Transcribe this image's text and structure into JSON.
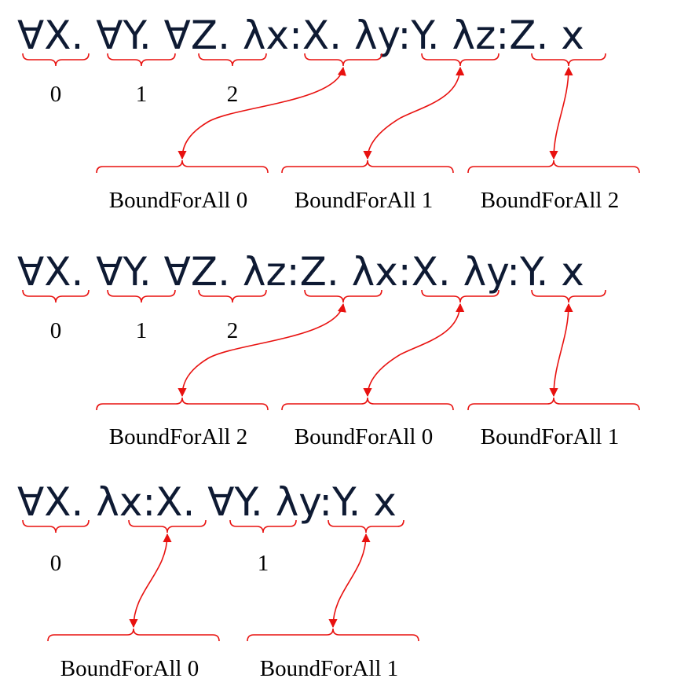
{
  "diagram": {
    "rows": [
      {
        "expression": "∀X. ∀Y. ∀Z. λx:X. λy:Y. λz:Z. x",
        "quantifier_indices": [
          "0",
          "1",
          "2"
        ],
        "bound_labels": [
          "BoundForAll 0",
          "BoundForAll 1",
          "BoundForAll 2"
        ]
      },
      {
        "expression": "∀X. ∀Y. ∀Z. λz:Z. λx:X. λy:Y. x",
        "quantifier_indices": [
          "0",
          "1",
          "2"
        ],
        "bound_labels": [
          "BoundForAll 2",
          "BoundForAll 0",
          "BoundForAll 1"
        ]
      },
      {
        "expression": "∀X. λx:X. ∀Y. λy:Y. x",
        "quantifier_indices": [
          "0",
          "1"
        ],
        "bound_labels": [
          "BoundForAll 0",
          "BoundForAll 1"
        ]
      }
    ],
    "colors": {
      "annotation": "#e8110f",
      "expression": "#0e1a33",
      "text": "#000000"
    }
  }
}
